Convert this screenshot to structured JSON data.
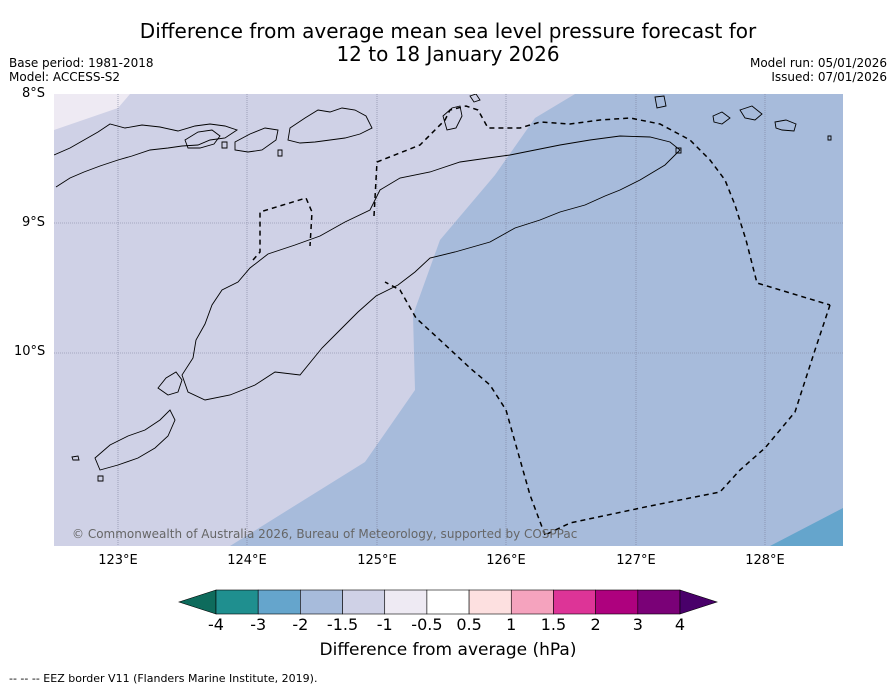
{
  "title_line1": "Difference from average mean sea level pressure forecast for",
  "title_line2": "12 to 18 January 2026",
  "meta": {
    "base_period": "Base period: 1981-2018",
    "model": "Model: ACCESS-S2",
    "model_run": "Model run: 05/01/2026",
    "issued": "Issued: 07/01/2026"
  },
  "map": {
    "lat_labels": [
      "8°S",
      "9°S",
      "10°S"
    ],
    "lon_labels": [
      "123°E",
      "124°E",
      "125°E",
      "126°E",
      "127°E",
      "128°E"
    ],
    "copyright": "© Commonwealth of Australia 2026, Bureau of Meteorology, supported by COSPPac"
  },
  "colorbar": {
    "ticks": [
      "-4",
      "-3",
      "-2",
      "-1.5",
      "-1",
      "-0.5",
      "0.5",
      "1",
      "1.5",
      "2",
      "3",
      "4"
    ],
    "colors": [
      "#1f8f8f",
      "#65a5cc",
      "#a7bbdb",
      "#cfd1e6",
      "#eeeaf3",
      "#ffffff",
      "#fde0e0",
      "#f5a3be",
      "#dd3497",
      "#ae017e",
      "#7a0177"
    ],
    "under_color": "#0e6b5c",
    "over_color": "#49006a",
    "label": "Difference from average (hPa)"
  },
  "footer": "--  --  -- EEZ border V11 (Flanders Marine Institute, 2019)."
}
